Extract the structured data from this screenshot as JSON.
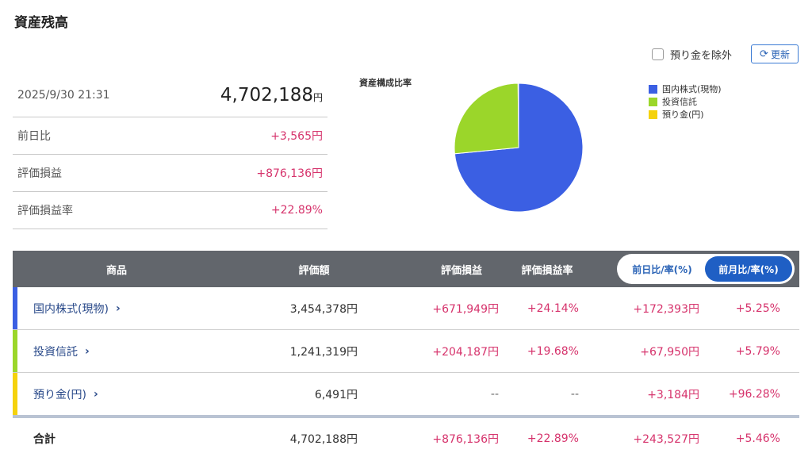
{
  "page": {
    "title": "資産残高"
  },
  "controls": {
    "exclude_label": "預り金を除外",
    "refresh_label": "更新",
    "refresh_icon": "refresh-icon"
  },
  "summary": {
    "datetime": "2025/9/30 21:31",
    "total": "4,702,188",
    "yen": "円",
    "rows": [
      {
        "label": "前日比",
        "value": "+3,565円"
      },
      {
        "label": "評価損益",
        "value": "+876,136円"
      },
      {
        "label": "評価損益率",
        "value": "+22.89%"
      }
    ]
  },
  "chart_data": {
    "type": "pie",
    "title": "資産構成比率",
    "labels": [
      "国内株式(現物)",
      "投資信託",
      "預り金(円)"
    ],
    "values": [
      3454378,
      1241319,
      6491
    ],
    "colors": [
      "#3b5fe3",
      "#9bd62a",
      "#f5d20c"
    ],
    "legend_position": "top-right"
  },
  "table": {
    "headers": {
      "product": "商品",
      "valuation": "評価額",
      "pl": "評価損益",
      "pl_rate": "評価損益率"
    },
    "toggle": {
      "daily": "前日比/率(%)",
      "monthly": "前月比/率(%)",
      "active": "monthly"
    },
    "rows": [
      {
        "name": "国内株式(現物)",
        "color": "#3b5fe3",
        "valuation": "3,454,378円",
        "pl": "+671,949円",
        "pl_rate": "+24.14%",
        "diff": "+172,393円",
        "diff_rate": "+5.25%"
      },
      {
        "name": "投資信託",
        "color": "#9bd62a",
        "valuation": "1,241,319円",
        "pl": "+204,187円",
        "pl_rate": "+19.68%",
        "diff": "+67,950円",
        "diff_rate": "+5.79%"
      },
      {
        "name": "預り金(円)",
        "color": "#f5d20c",
        "valuation": "6,491円",
        "pl": "--",
        "pl_rate": "--",
        "diff": "+3,184円",
        "diff_rate": "+96.28%"
      }
    ],
    "total": {
      "label": "合計",
      "valuation": "4,702,188円",
      "pl": "+876,136円",
      "pl_rate": "+22.89%",
      "diff": "+243,527円",
      "diff_rate": "+5.46%"
    }
  }
}
